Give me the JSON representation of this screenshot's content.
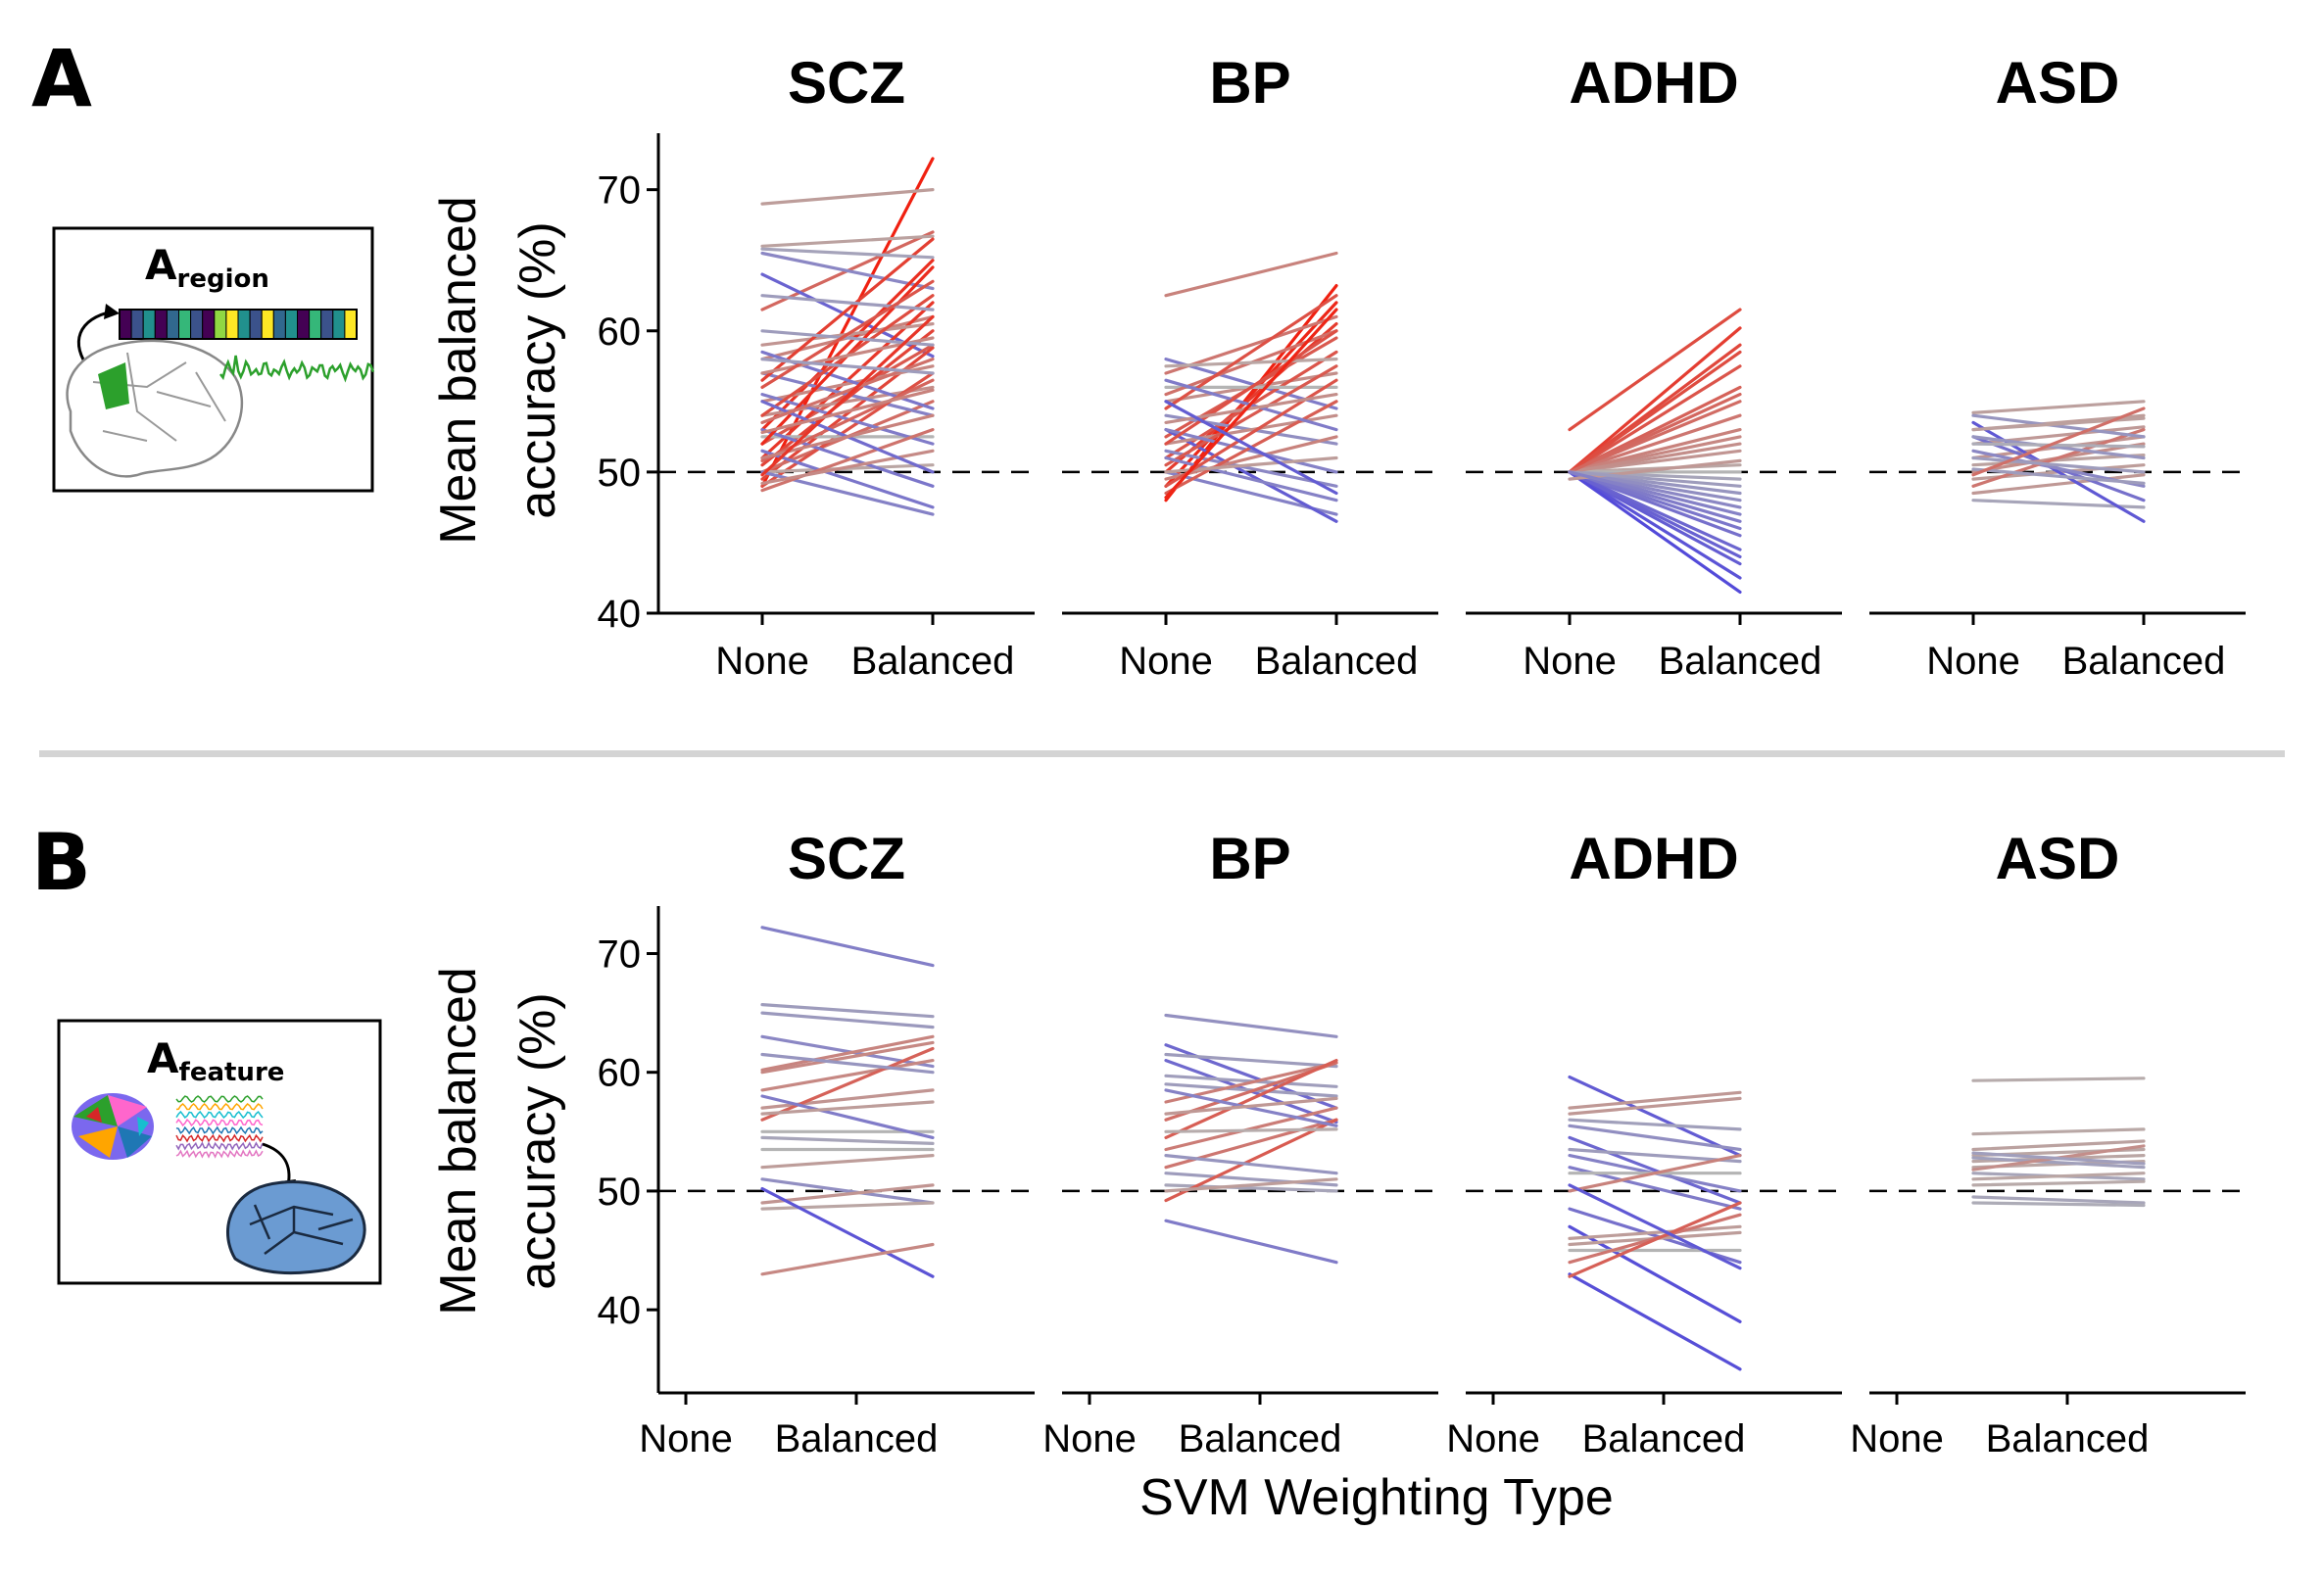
{
  "panels": [
    {
      "letter": "A",
      "icon_name": "brain-region-timeseries-icon",
      "icon_title_main": "A",
      "icon_title_sub": "region",
      "ylabel_line1": "Mean balanced",
      "ylabel_line2": "accuracy (%)"
    },
    {
      "letter": "B",
      "icon_name": "brain-feature-map-icon",
      "icon_title_main": "A",
      "icon_title_sub": "feature",
      "ylabel_line1": "Mean balanced",
      "ylabel_line2": "accuracy (%)"
    }
  ],
  "xlabel": "SVM Weighting Type",
  "colors": {
    "increase": "#f02010",
    "decrease": "#2a1ee8",
    "neutral": "#b4b4b4",
    "reference": "#000000"
  },
  "chart_data": [
    {
      "type": "line",
      "panel": "A",
      "categories": [
        "None",
        "Balanced"
      ],
      "ylim": [
        40,
        74
      ],
      "yticks": [
        40,
        50,
        60,
        70
      ],
      "reference_line": 50,
      "grid": false,
      "facets": [
        {
          "title": "SCZ",
          "pairs": [
            [
              49,
              72.2
            ],
            [
              61.5,
              67
            ],
            [
              69,
              70
            ],
            [
              64,
              58.2
            ],
            [
              66,
              66.7
            ],
            [
              65.5,
              63
            ],
            [
              58,
              61
            ],
            [
              52,
              59
            ],
            [
              49.5,
              58.8
            ],
            [
              51,
              62
            ],
            [
              53,
              65
            ],
            [
              50,
              55
            ],
            [
              55,
              57.5
            ],
            [
              54,
              56
            ],
            [
              59,
              60.5
            ],
            [
              57,
              54
            ],
            [
              56.5,
              66.5
            ],
            [
              50.5,
              60
            ],
            [
              49,
              57
            ],
            [
              52.5,
              52.5
            ],
            [
              50,
              50.5
            ],
            [
              51.5,
              47.5
            ],
            [
              50,
              47
            ],
            [
              53,
              49
            ],
            [
              55.5,
              52
            ],
            [
              58.5,
              54.5
            ],
            [
              48.7,
              53
            ],
            [
              52,
              64.5
            ],
            [
              54,
              62.5
            ],
            [
              57,
              59.5
            ],
            [
              50.8,
              56.5
            ],
            [
              49.2,
              51.5
            ],
            [
              60,
              59
            ],
            [
              55,
              50
            ],
            [
              62.5,
              61.5
            ],
            [
              56,
              63.5
            ],
            [
              53.5,
              58
            ],
            [
              51,
              54
            ],
            [
              49.8,
              61
            ],
            [
              58,
              57
            ],
            [
              65.8,
              65.2
            ],
            [
              52.8,
              55.8
            ]
          ]
        },
        {
          "title": "BP",
          "pairs": [
            [
              62.5,
              65.5
            ],
            [
              48,
              63.2
            ],
            [
              49,
              62
            ],
            [
              50,
              60.5
            ],
            [
              58,
              54.5
            ],
            [
              57,
              61
            ],
            [
              55,
              57
            ],
            [
              51,
              58.5
            ],
            [
              52.5,
              59.5
            ],
            [
              50,
              47
            ],
            [
              53,
              46.5
            ],
            [
              51.5,
              49
            ],
            [
              54,
              52
            ],
            [
              56,
              56
            ],
            [
              52,
              54
            ],
            [
              55.5,
              60
            ],
            [
              49.5,
              52.5
            ],
            [
              50.5,
              57.5
            ],
            [
              53,
              50
            ],
            [
              57.5,
              58
            ],
            [
              48.5,
              55
            ],
            [
              51,
              48
            ],
            [
              54.5,
              62.5
            ],
            [
              50,
              51
            ],
            [
              56.5,
              53
            ],
            [
              49,
              56.5
            ],
            [
              52,
              60
            ],
            [
              53.5,
              55.5
            ],
            [
              48.2,
              61.5
            ],
            [
              55,
              48.5
            ]
          ]
        },
        {
          "title": "ADHD",
          "pairs": [
            [
              53,
              61.5
            ],
            [
              50,
              60.2
            ],
            [
              50,
              59
            ],
            [
              50,
              57.5
            ],
            [
              50,
              56
            ],
            [
              50,
              55
            ],
            [
              50,
              54
            ],
            [
              50,
              52.5
            ],
            [
              50,
              51.5
            ],
            [
              50,
              50.5
            ],
            [
              50,
              50
            ],
            [
              50,
              49.5
            ],
            [
              50,
              48.5
            ],
            [
              50,
              47.5
            ],
            [
              50,
              46.5
            ],
            [
              50,
              45.5
            ],
            [
              50,
              44.5
            ],
            [
              50,
              43.5
            ],
            [
              50,
              42.5
            ],
            [
              50,
              41.5
            ],
            [
              50,
              58.5
            ],
            [
              50,
              53
            ],
            [
              50,
              48
            ],
            [
              50,
              44
            ],
            [
              50,
              52
            ],
            [
              50,
              46
            ],
            [
              49.5,
              50.8
            ],
            [
              50,
              55.5
            ],
            [
              50,
              49
            ],
            [
              50,
              47
            ]
          ]
        },
        {
          "title": "ASD",
          "pairs": [
            [
              54.2,
              55
            ],
            [
              53,
              54
            ],
            [
              52,
              53.2
            ],
            [
              51,
              52.5
            ],
            [
              50.5,
              51.2
            ],
            [
              49.5,
              50.5
            ],
            [
              48.5,
              49.8
            ],
            [
              48,
              47.5
            ],
            [
              53.5,
              46.5
            ],
            [
              52.5,
              48
            ],
            [
              51.5,
              49
            ],
            [
              50,
              52
            ],
            [
              49,
              53
            ],
            [
              54,
              52.5
            ],
            [
              52.5,
              51
            ],
            [
              51,
              50
            ],
            [
              50.2,
              49.2
            ],
            [
              53,
              53.8
            ],
            [
              52,
              51.8
            ],
            [
              49.8,
              54.5
            ]
          ]
        }
      ]
    },
    {
      "type": "line",
      "panel": "B",
      "categories": [
        "None",
        "Balanced"
      ],
      "ylim": [
        33,
        74
      ],
      "yticks": [
        40,
        50,
        60,
        70
      ],
      "reference_line": 50,
      "grid": false,
      "facets": [
        {
          "title": "SCZ",
          "pairs": [
            [
              72.2,
              69
            ],
            [
              65.7,
              64.7
            ],
            [
              65,
              63.8
            ],
            [
              63,
              60.5
            ],
            [
              60.2,
              63
            ],
            [
              60,
              62.5
            ],
            [
              58.5,
              61
            ],
            [
              57,
              58.5
            ],
            [
              56,
              62
            ],
            [
              55,
              55
            ],
            [
              54.5,
              54
            ],
            [
              53.5,
              53.5
            ],
            [
              52,
              53
            ],
            [
              51,
              49
            ],
            [
              49,
              50.5
            ],
            [
              48.5,
              49
            ],
            [
              50.2,
              42.8
            ],
            [
              43,
              45.5
            ],
            [
              58,
              54.5
            ],
            [
              56.5,
              57.5
            ],
            [
              61.5,
              60
            ]
          ]
        },
        {
          "title": "BP",
          "pairs": [
            [
              64.8,
              63
            ],
            [
              62.3,
              57
            ],
            [
              61.5,
              60.5
            ],
            [
              61,
              55.8
            ],
            [
              59.7,
              58.8
            ],
            [
              59,
              58
            ],
            [
              57.5,
              60.8
            ],
            [
              56,
              60.8
            ],
            [
              54.5,
              61
            ],
            [
              53.5,
              57
            ],
            [
              52,
              56
            ],
            [
              51.5,
              50.5
            ],
            [
              50.5,
              50
            ],
            [
              49.2,
              56
            ],
            [
              47.5,
              44
            ],
            [
              58.5,
              55.5
            ],
            [
              55,
              55.2
            ],
            [
              53,
              51.5
            ],
            [
              56.5,
              57.8
            ],
            [
              50,
              51
            ]
          ]
        },
        {
          "title": "ADHD",
          "pairs": [
            [
              59.6,
              53
            ],
            [
              57,
              58.3
            ],
            [
              56.5,
              57.8
            ],
            [
              56,
              55.2
            ],
            [
              54.5,
              49
            ],
            [
              53.5,
              52.5
            ],
            [
              53,
              50
            ],
            [
              52,
              48.5
            ],
            [
              51.5,
              51.5
            ],
            [
              50,
              53
            ],
            [
              48.5,
              44
            ],
            [
              47,
              39
            ],
            [
              46,
              47
            ],
            [
              45.5,
              46.5
            ],
            [
              45,
              45
            ],
            [
              44,
              48
            ],
            [
              43,
              35
            ],
            [
              42.8,
              49
            ],
            [
              50.5,
              43.5
            ],
            [
              55.5,
              53.5
            ]
          ]
        },
        {
          "title": "ASD",
          "pairs": [
            [
              59.3,
              59.5
            ],
            [
              54.8,
              55.2
            ],
            [
              53.5,
              54.2
            ],
            [
              53,
              53.5
            ],
            [
              52.5,
              53
            ],
            [
              52,
              52.5
            ],
            [
              51.5,
              51
            ],
            [
              51,
              51.5
            ],
            [
              50.5,
              50.8
            ],
            [
              49.5,
              49
            ],
            [
              49,
              48.8
            ],
            [
              52.8,
              52
            ],
            [
              51.8,
              53.8
            ],
            [
              53.2,
              52.3
            ]
          ]
        }
      ]
    }
  ]
}
